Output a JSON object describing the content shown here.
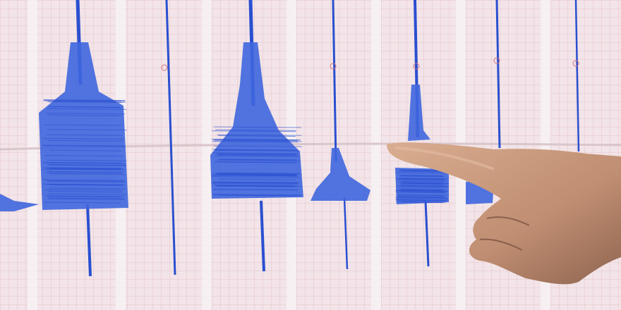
{
  "scene": {
    "subject": "seismograph-paper-with-pointing-hand",
    "colors": {
      "paper": "#f2e4e8",
      "grid": "#e3b9c2",
      "strip": "#f7f2f3",
      "trace": "#2a4fd0",
      "trace_dense": "#3f66de",
      "skin": "#c99a7e",
      "skin_shadow": "#8f6550"
    }
  }
}
